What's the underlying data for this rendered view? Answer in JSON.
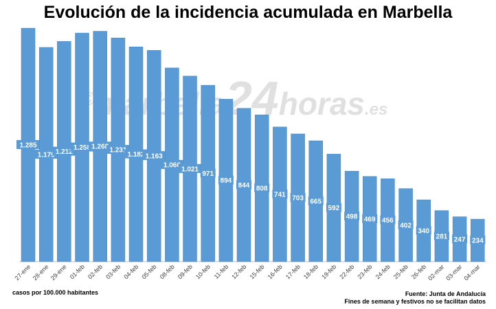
{
  "title": "Evolución de la incidencia acumulada en Marbella",
  "watermark": {
    "c": "©",
    "left": "marbella",
    "num": "24",
    "right": "horas",
    "tld": ".es"
  },
  "notes": {
    "units": "casos por 100.000 habitantes",
    "source": "Fuente: Junta de Andalucía",
    "disclaimer": "Fines de semana y festivos no se facilitan datos"
  },
  "colors": {
    "bar": "#5b9bd5",
    "bar_edge": "#4a86c0",
    "label": "#ffffff"
  },
  "chart_data": {
    "type": "bar",
    "title": "Evolución de la incidencia acumulada en Marbella",
    "categories": [
      "27-ene",
      "28-ene",
      "29-ene",
      "01-feb",
      "02-feb",
      "03-feb",
      "04-feb",
      "05-feb",
      "08-feb",
      "09-feb",
      "10-feb",
      "11-feb",
      "12-feb",
      "15-feb",
      "16-feb",
      "17-feb",
      "18-feb",
      "19-feb",
      "22-feb",
      "23-feb",
      "24-feb",
      "25-feb",
      "26-feb",
      "02-mar",
      "03-mar",
      "04-mar"
    ],
    "values": [
      1285,
      1179,
      1212,
      1258,
      1268,
      1231,
      1182,
      1163,
      1066,
      1021,
      971,
      894,
      844,
      808,
      741,
      703,
      665,
      592,
      498,
      469,
      456,
      402,
      340,
      281,
      247,
      234
    ],
    "value_labels": [
      "1.285",
      "1.179",
      "1.212",
      "1.258",
      "1.268",
      "1.231",
      "1.182",
      "1.163",
      "1.066",
      "1.021",
      "971",
      "894",
      "844",
      "808",
      "741",
      "703",
      "665",
      "592",
      "498",
      "469",
      "456",
      "402",
      "340",
      "281",
      "247",
      "234"
    ],
    "xlabel": "",
    "ylabel": "casos por 100.000 habitantes",
    "grid": false,
    "legend": "none"
  }
}
